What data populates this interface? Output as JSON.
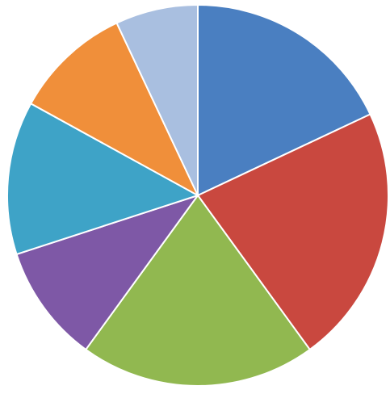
{
  "chart_data": {
    "type": "pie",
    "start_angle_deg": 0,
    "direction": "clockwise",
    "legend": "none",
    "slices": [
      {
        "label": "",
        "value": 18,
        "color": "#4a7fc1"
      },
      {
        "label": "",
        "value": 22,
        "color": "#c9483f"
      },
      {
        "label": "",
        "value": 20,
        "color": "#91b850"
      },
      {
        "label": "",
        "value": 10,
        "color": "#7e58a6"
      },
      {
        "label": "",
        "value": 13,
        "color": "#3ea3c7"
      },
      {
        "label": "",
        "value": 10,
        "color": "#f08f3a"
      },
      {
        "label": "",
        "value": 7,
        "color": "#a9bfe0"
      }
    ]
  }
}
